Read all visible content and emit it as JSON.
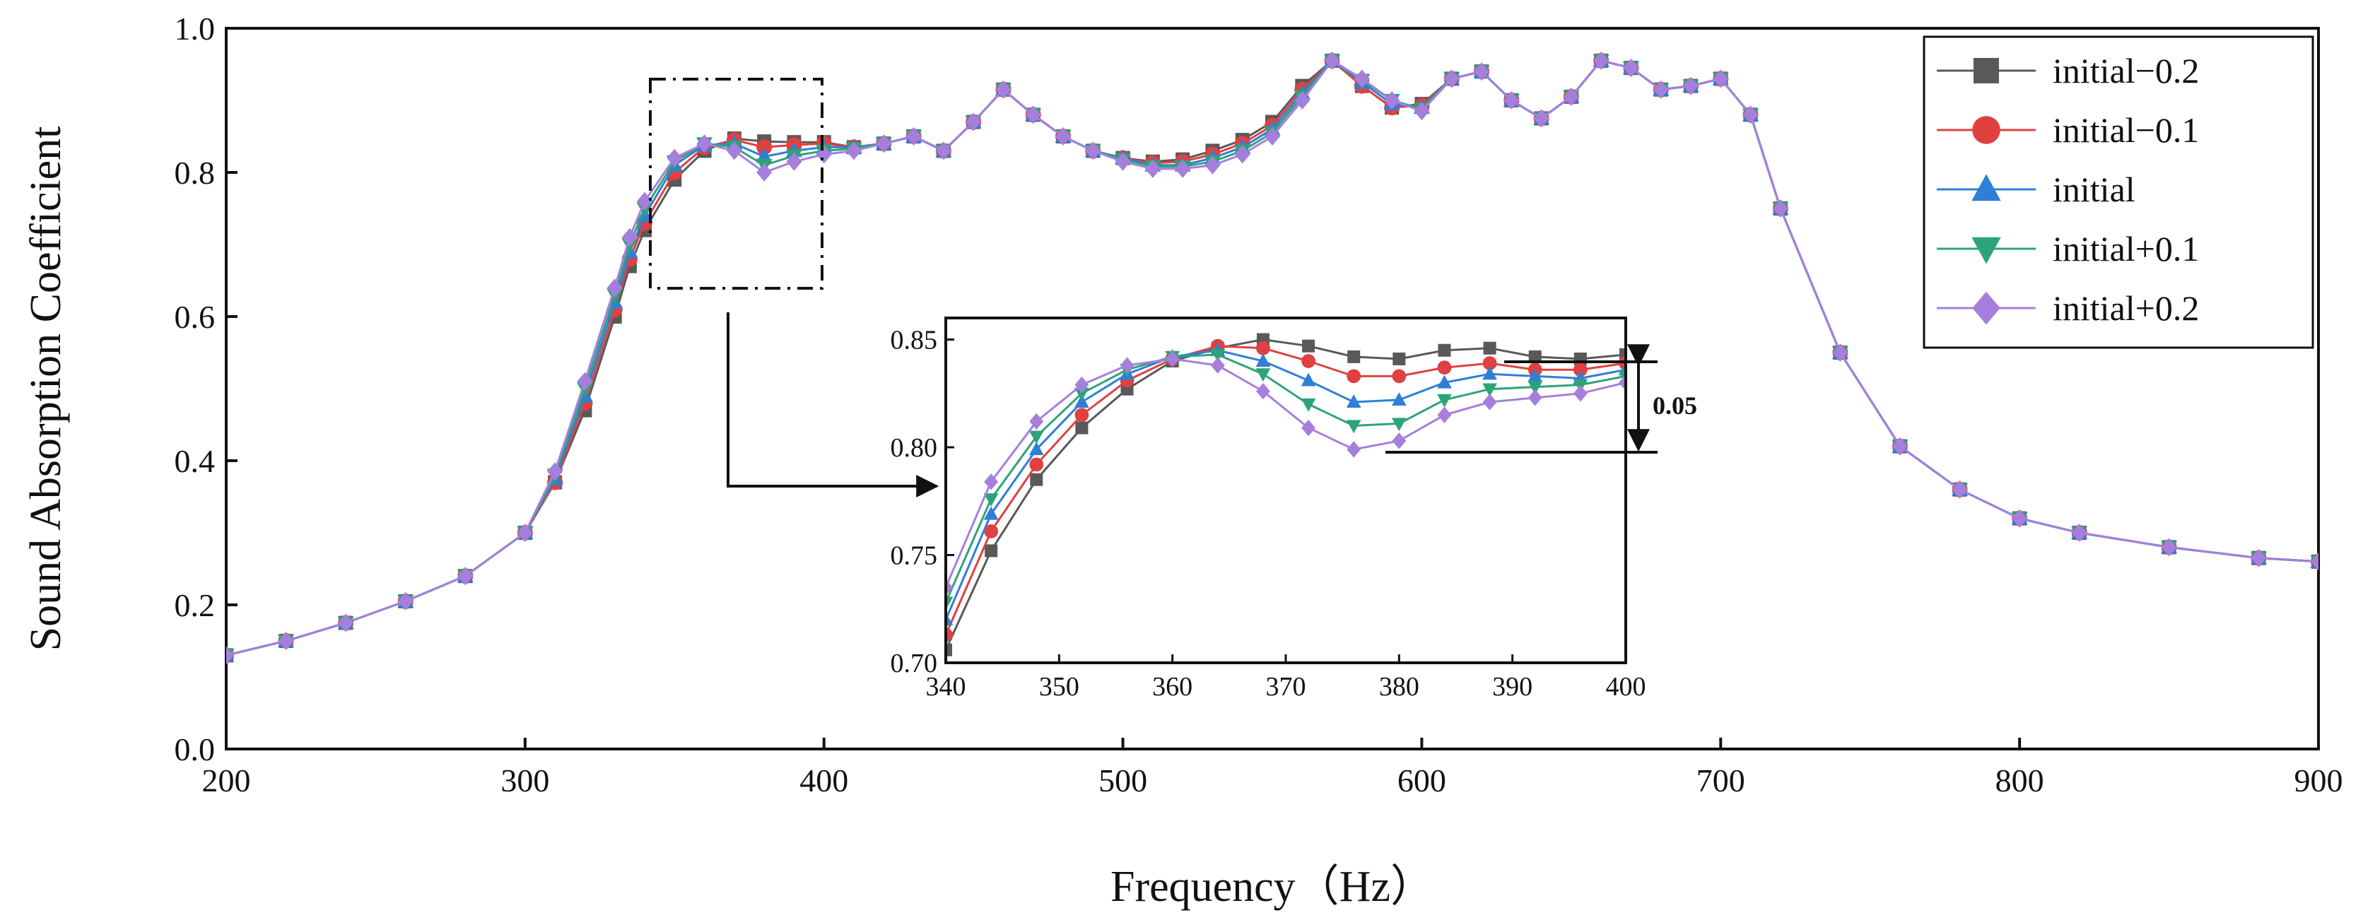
{
  "chart_data": {
    "type": "line",
    "title": "",
    "xlabel": "Frequency（Hz）",
    "ylabel": "Sound Absorption Coefficient",
    "xlim": [
      200,
      900
    ],
    "ylim": [
      0.0,
      1.0
    ],
    "xticks": [
      "200",
      "300",
      "400",
      "500",
      "600",
      "700",
      "800",
      "900"
    ],
    "yticks": [
      "0.0",
      "0.2",
      "0.4",
      "0.6",
      "0.8",
      "1.0"
    ],
    "grid": false,
    "legend_position": "top-right",
    "x": [
      200,
      220,
      240,
      260,
      280,
      300,
      310,
      320,
      330,
      335,
      340,
      350,
      360,
      370,
      380,
      390,
      400,
      410,
      420,
      430,
      440,
      450,
      460,
      470,
      480,
      490,
      500,
      510,
      520,
      530,
      540,
      550,
      560,
      570,
      580,
      590,
      600,
      610,
      620,
      630,
      640,
      650,
      660,
      670,
      680,
      690,
      700,
      710,
      720,
      740,
      760,
      780,
      800,
      820,
      850,
      880,
      900
    ],
    "series": [
      {
        "name": "initial−0.2",
        "color": "#595959",
        "marker": "square",
        "values": [
          0.13,
          0.15,
          0.175,
          0.205,
          0.24,
          0.3,
          0.37,
          0.47,
          0.6,
          0.67,
          0.72,
          0.79,
          0.83,
          0.847,
          0.843,
          0.842,
          0.842,
          0.835,
          0.84,
          0.85,
          0.83,
          0.87,
          0.915,
          0.88,
          0.85,
          0.83,
          0.82,
          0.815,
          0.818,
          0.83,
          0.845,
          0.87,
          0.92,
          0.955,
          0.92,
          0.89,
          0.895,
          0.93,
          0.94,
          0.9,
          0.875,
          0.905,
          0.955,
          0.945,
          0.915,
          0.92,
          0.93,
          0.88,
          0.75,
          0.55,
          0.42,
          0.36,
          0.32,
          0.3,
          0.28,
          0.265,
          0.26
        ]
      },
      {
        "name": "initial−0.1",
        "color": "#e04040",
        "marker": "circle",
        "values": [
          0.13,
          0.15,
          0.175,
          0.205,
          0.24,
          0.3,
          0.37,
          0.48,
          0.61,
          0.68,
          0.73,
          0.8,
          0.835,
          0.845,
          0.835,
          0.838,
          0.84,
          0.835,
          0.84,
          0.85,
          0.83,
          0.87,
          0.915,
          0.88,
          0.85,
          0.83,
          0.82,
          0.813,
          0.815,
          0.825,
          0.84,
          0.865,
          0.915,
          0.955,
          0.92,
          0.89,
          0.893,
          0.93,
          0.94,
          0.9,
          0.875,
          0.905,
          0.955,
          0.945,
          0.915,
          0.92,
          0.93,
          0.88,
          0.75,
          0.55,
          0.42,
          0.36,
          0.32,
          0.3,
          0.28,
          0.265,
          0.26
        ]
      },
      {
        "name": "initial",
        "color": "#2f7fd6",
        "marker": "triangle-up",
        "values": [
          0.13,
          0.15,
          0.175,
          0.205,
          0.24,
          0.3,
          0.375,
          0.49,
          0.62,
          0.69,
          0.74,
          0.81,
          0.838,
          0.84,
          0.822,
          0.83,
          0.835,
          0.835,
          0.84,
          0.85,
          0.83,
          0.87,
          0.915,
          0.88,
          0.85,
          0.83,
          0.82,
          0.81,
          0.81,
          0.82,
          0.835,
          0.86,
          0.91,
          0.955,
          0.925,
          0.895,
          0.89,
          0.93,
          0.94,
          0.9,
          0.875,
          0.905,
          0.955,
          0.945,
          0.915,
          0.92,
          0.93,
          0.88,
          0.75,
          0.55,
          0.42,
          0.36,
          0.32,
          0.3,
          0.28,
          0.265,
          0.26
        ]
      },
      {
        "name": "initial+0.1",
        "color": "#2ea37a",
        "marker": "triangle-down",
        "values": [
          0.13,
          0.15,
          0.175,
          0.205,
          0.24,
          0.3,
          0.38,
          0.5,
          0.63,
          0.7,
          0.75,
          0.815,
          0.84,
          0.835,
          0.81,
          0.823,
          0.83,
          0.833,
          0.84,
          0.85,
          0.83,
          0.87,
          0.915,
          0.88,
          0.85,
          0.83,
          0.818,
          0.808,
          0.808,
          0.815,
          0.83,
          0.855,
          0.905,
          0.955,
          0.928,
          0.9,
          0.888,
          0.93,
          0.94,
          0.9,
          0.875,
          0.905,
          0.955,
          0.945,
          0.915,
          0.92,
          0.93,
          0.88,
          0.75,
          0.55,
          0.42,
          0.36,
          0.32,
          0.3,
          0.28,
          0.265,
          0.26
        ]
      },
      {
        "name": "initial+0.2",
        "color": "#a67fdc",
        "marker": "diamond",
        "values": [
          0.13,
          0.15,
          0.175,
          0.205,
          0.24,
          0.3,
          0.385,
          0.51,
          0.64,
          0.71,
          0.76,
          0.82,
          0.84,
          0.83,
          0.8,
          0.815,
          0.825,
          0.83,
          0.84,
          0.85,
          0.83,
          0.87,
          0.915,
          0.88,
          0.85,
          0.83,
          0.815,
          0.805,
          0.805,
          0.81,
          0.825,
          0.85,
          0.9,
          0.955,
          0.93,
          0.9,
          0.885,
          0.93,
          0.94,
          0.9,
          0.875,
          0.905,
          0.955,
          0.945,
          0.915,
          0.92,
          0.93,
          0.88,
          0.75,
          0.55,
          0.42,
          0.36,
          0.32,
          0.3,
          0.28,
          0.265,
          0.26
        ]
      }
    ],
    "zoom_box": {
      "xlim": [
        343,
        401
      ],
      "ylim": [
        0.65,
        0.94
      ]
    },
    "inset": {
      "xlim": [
        340,
        400
      ],
      "ylim": [
        0.7,
        0.86
      ],
      "xticks": [
        "340",
        "350",
        "360",
        "370",
        "380",
        "390",
        "400"
      ],
      "yticks": [
        "0.70",
        "0.75",
        "0.80",
        "0.85"
      ],
      "x": [
        340,
        344,
        348,
        352,
        356,
        360,
        364,
        368,
        372,
        376,
        380,
        384,
        388,
        392,
        396,
        400
      ],
      "series": [
        {
          "name": "initial−0.2",
          "values": [
            0.706,
            0.752,
            0.785,
            0.809,
            0.827,
            0.84,
            0.846,
            0.85,
            0.847,
            0.842,
            0.841,
            0.845,
            0.846,
            0.842,
            0.841,
            0.843
          ]
        },
        {
          "name": "initial−0.1",
          "values": [
            0.713,
            0.761,
            0.792,
            0.815,
            0.831,
            0.841,
            0.847,
            0.846,
            0.84,
            0.833,
            0.833,
            0.837,
            0.839,
            0.836,
            0.836,
            0.839
          ]
        },
        {
          "name": "initial",
          "values": [
            0.72,
            0.769,
            0.799,
            0.821,
            0.834,
            0.842,
            0.845,
            0.84,
            0.831,
            0.821,
            0.822,
            0.83,
            0.834,
            0.833,
            0.832,
            0.836
          ]
        },
        {
          "name": "initial+0.1",
          "values": [
            0.728,
            0.776,
            0.805,
            0.825,
            0.836,
            0.842,
            0.843,
            0.834,
            0.82,
            0.81,
            0.811,
            0.822,
            0.827,
            0.828,
            0.829,
            0.833
          ]
        },
        {
          "name": "initial+0.2",
          "values": [
            0.735,
            0.784,
            0.812,
            0.829,
            0.838,
            0.841,
            0.838,
            0.826,
            0.809,
            0.799,
            0.803,
            0.815,
            0.821,
            0.823,
            0.825,
            0.83
          ]
        }
      ],
      "annotation": {
        "label": "0.05",
        "from": 0.84,
        "to": 0.8
      }
    }
  }
}
